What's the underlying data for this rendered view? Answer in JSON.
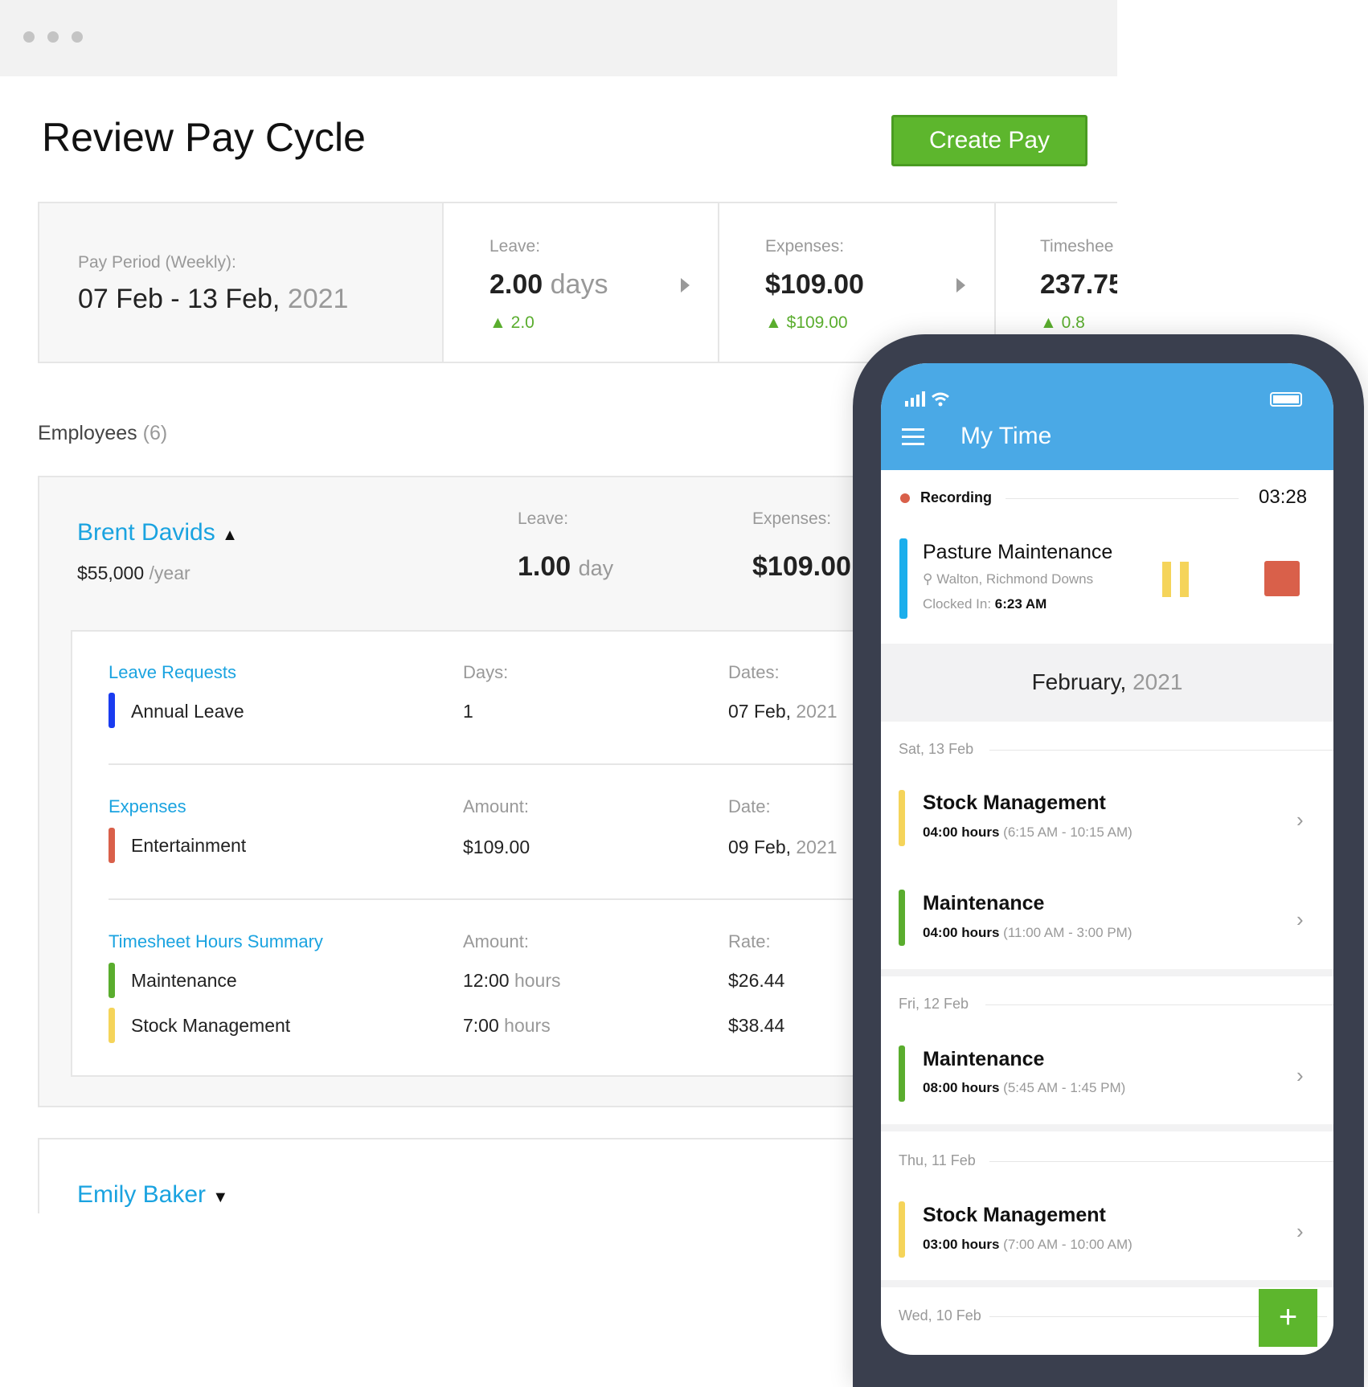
{
  "page": {
    "title": "Review Pay Cycle",
    "create_pay": "Create Pay"
  },
  "summary": {
    "period_label": "Pay Period (Weekly):",
    "period_value": "07 Feb - 13 Feb,",
    "period_year": "2021",
    "leave": {
      "label": "Leave:",
      "value": "2.00",
      "unit": "days",
      "change": "2.0"
    },
    "expenses": {
      "label": "Expenses:",
      "value": "$109.00",
      "change": "$109.00"
    },
    "timesheet": {
      "label": "Timeshee",
      "value": "237.75",
      "change": "0.8"
    }
  },
  "employees": {
    "label": "Employees",
    "count": "(6)",
    "list": [
      {
        "name": "Brent Davids",
        "salary": "$55,000",
        "salary_unit": "/year",
        "leave_label": "Leave:",
        "leave_value": "1.00",
        "leave_unit": "day",
        "expenses_label": "Expenses:",
        "expenses_value": "$109.00",
        "leave_requests": {
          "title": "Leave Requests",
          "col2": "Days:",
          "col3": "Dates:",
          "rows": [
            {
              "name": "Annual Leave",
              "value": "1",
              "date": "07 Feb,",
              "year": "2021",
              "color": "#1a3cf0"
            }
          ]
        },
        "expenses": {
          "title": "Expenses",
          "col2": "Amount:",
          "col3": "Date:",
          "rows": [
            {
              "name": "Entertainment",
              "value": "$109.00",
              "date": "09 Feb,",
              "year": "2021",
              "color": "#d9604a"
            }
          ]
        },
        "timesheet": {
          "title": "Timesheet Hours Summary",
          "col2": "Amount:",
          "col3": "Rate:",
          "rows": [
            {
              "name": "Maintenance",
              "value": "12:00",
              "unit": "hours",
              "rate": "$26.44",
              "color": "#5aad2e"
            },
            {
              "name": "Stock Management",
              "value": "7:00",
              "unit": "hours",
              "rate": "$38.44",
              "color": "#f5d45a"
            }
          ]
        }
      },
      {
        "name": "Emily Baker"
      }
    ]
  },
  "phone": {
    "title": "My Time",
    "recording_label": "Recording",
    "timer": "03:28",
    "current": {
      "title": "Pasture Maintenance",
      "location": "Walton, Richmond Downs",
      "clocked_label": "Clocked In:",
      "clocked_time": "6:23 AM"
    },
    "month": "February,",
    "month_year": "2021",
    "days": [
      {
        "day": "Sat,",
        "date": "13 Feb",
        "entries": [
          {
            "title": "Stock Management",
            "hours": "04:00 hours",
            "range": "(6:15 AM - 10:15 AM)",
            "color": "#f5d45a"
          },
          {
            "title": "Maintenance",
            "hours": "04:00 hours",
            "range": "(11:00 AM - 3:00 PM)",
            "color": "#5aad2e"
          }
        ]
      },
      {
        "day": "Fri,",
        "date": "12 Feb",
        "entries": [
          {
            "title": "Maintenance",
            "hours": "08:00 hours",
            "range": "(5:45 AM - 1:45 PM)",
            "color": "#5aad2e"
          }
        ]
      },
      {
        "day": "Thu,",
        "date": "11 Feb",
        "entries": [
          {
            "title": "Stock Management",
            "hours": "03:00 hours",
            "range": "(7:00 AM - 10:00 AM)",
            "color": "#f5d45a"
          }
        ]
      },
      {
        "day": "Wed,",
        "date": "10 Feb",
        "entries": []
      }
    ],
    "add_label": "+"
  },
  "colors": {
    "accent": "#1aa3e0",
    "green": "#5db62d",
    "phone_header": "#4aa9e6",
    "recording": "#d9604a"
  }
}
